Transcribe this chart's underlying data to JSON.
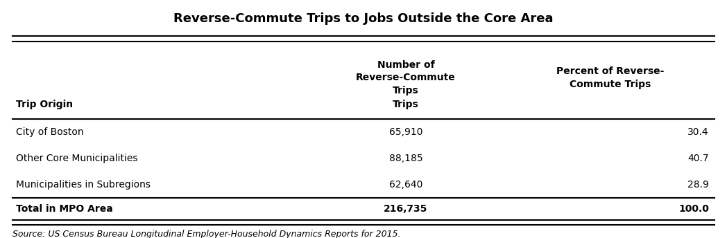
{
  "title": "Reverse-Commute Trips to Jobs Outside the Core Area",
  "col_headers": [
    "Trip Origin",
    "Number of\nReverse-Commute\nTrips",
    "Percent of Reverse-\nCommute Trips"
  ],
  "rows": [
    [
      "City of Boston",
      "65,910",
      "30.4"
    ],
    [
      "Other Core Municipalities",
      "88,185",
      "40.7"
    ],
    [
      "Municipalities in Subregions",
      "62,640",
      "28.9"
    ],
    [
      "Total in MPO Area",
      "216,735",
      "100.0"
    ]
  ],
  "total_row_index": 3,
  "source": "Source: US Census Bureau Longitudinal Employer-Household Dynamics Reports for 2015.",
  "background_color": "#ffffff",
  "line_color": "#000000",
  "title_fontsize": 13,
  "header_fontsize": 10,
  "body_fontsize": 10,
  "source_fontsize": 9
}
